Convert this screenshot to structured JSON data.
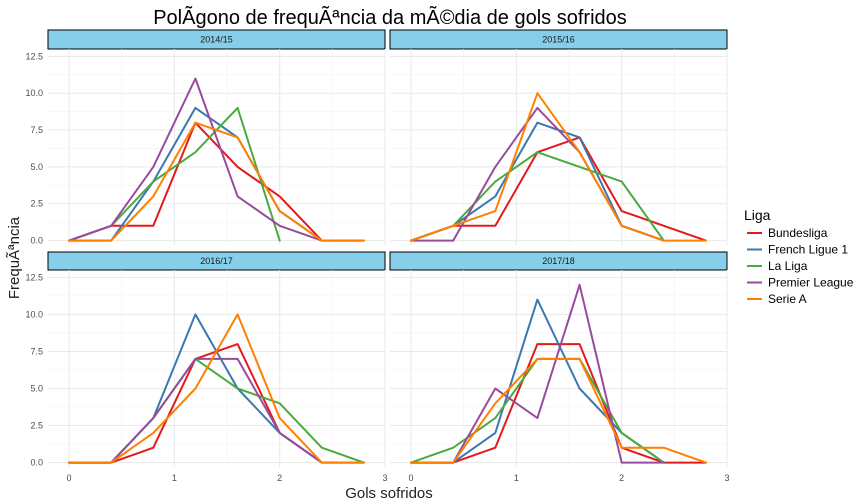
{
  "chart_data": {
    "type": "line",
    "title": "PolÃ­gono de frequÃªncia da mÃ©dia de gols sofridos",
    "xlabel": "Gols sofridos",
    "ylabel": "FrequÃªncia",
    "xlim": [
      -0.2,
      3.0
    ],
    "ylim": [
      -0.3,
      13.0
    ],
    "x_ticks": [
      0,
      1,
      2,
      3
    ],
    "x_tick_labels": [
      "0",
      "1",
      "2",
      "3"
    ],
    "y_ticks": [
      0,
      2.5,
      5,
      7.5,
      10,
      12.5
    ],
    "y_tick_labels": [
      "0.0",
      "2.5",
      "5.0",
      "7.5",
      "10.0",
      "12.5"
    ],
    "grid": true,
    "legend": {
      "title": "Liga",
      "position": "right",
      "entries": [
        {
          "name": "Bundesliga",
          "color": "#e31a1c"
        },
        {
          "name": "French Ligue 1",
          "color": "#3a78b0"
        },
        {
          "name": "La Liga",
          "color": "#4aaa3e"
        },
        {
          "name": "Premier League",
          "color": "#9a4a9e"
        },
        {
          "name": "Serie A",
          "color": "#ff8000"
        }
      ]
    },
    "panels": [
      {
        "label": "2014/15",
        "series": [
          {
            "name": "Bundesliga",
            "x": [
              0,
              0.4,
              0.8,
              1.2,
              1.6,
              2.0,
              2.4,
              2.8
            ],
            "y": [
              0,
              1,
              1,
              8,
              5,
              3,
              0,
              0
            ]
          },
          {
            "name": "French Ligue 1",
            "x": [
              0,
              0.4,
              0.8,
              1.2,
              1.6,
              2.0,
              2.4
            ],
            "y": [
              0,
              0,
              4,
              9,
              7,
              2,
              0
            ]
          },
          {
            "name": "La Liga",
            "x": [
              0,
              0.4,
              0.8,
              1.2,
              1.6,
              2.0
            ],
            "y": [
              0,
              1,
              4,
              6,
              9,
              0
            ]
          },
          {
            "name": "Premier League",
            "x": [
              0,
              0.4,
              0.8,
              1.2,
              1.6,
              2.0,
              2.4
            ],
            "y": [
              0,
              1,
              5,
              11,
              3,
              1,
              0
            ]
          },
          {
            "name": "Serie A",
            "x": [
              0,
              0.4,
              0.8,
              1.2,
              1.6,
              2.0,
              2.4,
              2.8
            ],
            "y": [
              0,
              0,
              3,
              8,
              7,
              2,
              0,
              0
            ]
          }
        ]
      },
      {
        "label": "2015/16",
        "series": [
          {
            "name": "Bundesliga",
            "x": [
              0,
              0.4,
              0.8,
              1.2,
              1.6,
              2.0,
              2.4,
              2.8
            ],
            "y": [
              0,
              1,
              1,
              6,
              7,
              2,
              1,
              0
            ]
          },
          {
            "name": "French Ligue 1",
            "x": [
              0,
              0.4,
              0.8,
              1.2,
              1.6,
              2.0,
              2.4
            ],
            "y": [
              0,
              1,
              3,
              8,
              7,
              1,
              0
            ]
          },
          {
            "name": "La Liga",
            "x": [
              0,
              0.4,
              0.8,
              1.2,
              1.6,
              2.0,
              2.4
            ],
            "y": [
              0,
              1,
              4,
              6,
              5,
              4,
              0
            ]
          },
          {
            "name": "Premier League",
            "x": [
              0,
              0.4,
              0.8,
              1.2,
              1.6,
              2.0,
              2.4
            ],
            "y": [
              0,
              0,
              5,
              9,
              6,
              1,
              0
            ]
          },
          {
            "name": "Serie A",
            "x": [
              0,
              0.4,
              0.8,
              1.2,
              1.6,
              2.0,
              2.4,
              2.8
            ],
            "y": [
              0,
              1,
              2,
              10,
              6,
              1,
              0,
              0
            ]
          }
        ]
      },
      {
        "label": "2016/17",
        "series": [
          {
            "name": "Bundesliga",
            "x": [
              0,
              0.4,
              0.8,
              1.2,
              1.6,
              2.0,
              2.4,
              2.8
            ],
            "y": [
              0,
              0,
              1,
              7,
              8,
              2,
              0,
              0
            ]
          },
          {
            "name": "French Ligue 1",
            "x": [
              0,
              0.4,
              0.8,
              1.2,
              1.6,
              2.0,
              2.4
            ],
            "y": [
              0,
              0,
              3,
              10,
              5,
              2,
              0
            ]
          },
          {
            "name": "La Liga",
            "x": [
              0,
              0.4,
              0.8,
              1.2,
              1.6,
              2.0,
              2.4,
              2.8
            ],
            "y": [
              0,
              0,
              3,
              7,
              5,
              4,
              1,
              0
            ]
          },
          {
            "name": "Premier League",
            "x": [
              0,
              0.4,
              0.8,
              1.2,
              1.6,
              2.0,
              2.4
            ],
            "y": [
              0,
              0,
              3,
              7,
              7,
              2,
              0
            ]
          },
          {
            "name": "Serie A",
            "x": [
              0,
              0.4,
              0.8,
              1.2,
              1.6,
              2.0,
              2.4,
              2.8
            ],
            "y": [
              0,
              0,
              2,
              5,
              10,
              3,
              0,
              0
            ]
          }
        ]
      },
      {
        "label": "2017/18",
        "series": [
          {
            "name": "Bundesliga",
            "x": [
              0,
              0.4,
              0.8,
              1.2,
              1.6,
              2.0,
              2.4,
              2.8
            ],
            "y": [
              0,
              0,
              1,
              8,
              8,
              1,
              0,
              0
            ]
          },
          {
            "name": "French Ligue 1",
            "x": [
              0,
              0.4,
              0.8,
              1.2,
              1.6,
              2.0,
              2.4
            ],
            "y": [
              0,
              0,
              2,
              11,
              5,
              2,
              0
            ]
          },
          {
            "name": "La Liga",
            "x": [
              0,
              0.4,
              0.8,
              1.2,
              1.6,
              2.0,
              2.4
            ],
            "y": [
              0,
              1,
              3,
              7,
              7,
              2,
              0
            ]
          },
          {
            "name": "Premier League",
            "x": [
              0,
              0.4,
              0.8,
              1.2,
              1.6,
              2.0,
              2.4
            ],
            "y": [
              0,
              0,
              5,
              3,
              12,
              0,
              0
            ]
          },
          {
            "name": "Serie A",
            "x": [
              0,
              0.4,
              0.8,
              1.2,
              1.6,
              2.0,
              2.4,
              2.8
            ],
            "y": [
              0,
              0,
              4,
              7,
              7,
              1,
              1,
              0
            ]
          }
        ]
      }
    ]
  }
}
